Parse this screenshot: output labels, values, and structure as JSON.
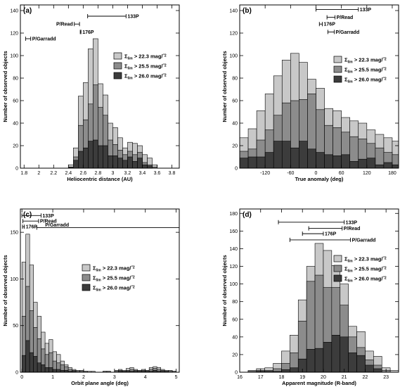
{
  "colors": {
    "light": "#c8c8c8",
    "mid": "#8c8c8c",
    "dark": "#3c3c3c"
  },
  "legend": [
    {
      "sym": "Σ",
      "sub": "lim",
      "text": " > 22.3 mag/",
      "unit": "″2"
    },
    {
      "sym": "Σ",
      "sub": "lim",
      "text": " > 25.5 mag/",
      "unit": "″2"
    },
    {
      "sym": "Σ",
      "sub": "lim",
      "text": " > 26.0 mag/",
      "unit": "″2"
    }
  ],
  "chart_data": [
    {
      "type": "bar",
      "label": "(a)",
      "xlabel": "Heliocentric distance (AU)",
      "ylabel": "Number of observed objects",
      "xlim": [
        1.75,
        3.9
      ],
      "ylim": [
        0,
        145
      ],
      "xticks": [
        1.8,
        2.0,
        2.2,
        2.4,
        2.6,
        2.8,
        3.0,
        3.2,
        3.4,
        3.6,
        3.8
      ],
      "xtick_labels": [
        "1.8",
        "2",
        "2.2",
        "2.4",
        "2.6",
        "2.8",
        "3",
        "3.2",
        "3.4",
        "3.6",
        "3.8"
      ],
      "yticks": [
        0,
        20,
        40,
        60,
        80,
        100,
        120,
        140
      ],
      "bin_start": 2.4,
      "bin_width": 0.0667,
      "series": [
        {
          "values": [
            3,
            18,
            64,
            76,
            106,
            115,
            75,
            65,
            40,
            36,
            27,
            18,
            23,
            22,
            20,
            12,
            9,
            3
          ]
        },
        {
          "values": [
            1,
            10,
            38,
            43,
            57,
            74,
            54,
            47,
            25,
            21,
            16,
            12,
            15,
            12,
            14,
            5,
            3,
            1
          ]
        },
        {
          "values": [
            1,
            7,
            15,
            18,
            24,
            25,
            20,
            20,
            11,
            11,
            9,
            7,
            10,
            6,
            9,
            3,
            2,
            0
          ]
        }
      ],
      "annotations": [
        {
          "text": "133P",
          "x0": 2.66,
          "x1": 3.18,
          "y": 135
        },
        {
          "text": "P/Read",
          "x0": 2.48,
          "x1": 2.55,
          "y": 128
        },
        {
          "text": "176P",
          "x0": 2.56,
          "x1": 2.57,
          "y": 121
        },
        {
          "text": "P/Garradd",
          "x0": 1.82,
          "x1": 1.89,
          "y": 115
        }
      ]
    },
    {
      "type": "bar",
      "label": "(b)",
      "xlabel": "True anomaly (deg)",
      "ylabel": "Number of observed objects",
      "xlim": [
        -180,
        195
      ],
      "ylim": [
        0,
        145
      ],
      "xticks": [
        -120,
        -60,
        0,
        60,
        120,
        180
      ],
      "xtick_labels": [
        "-120",
        "-60",
        "0",
        "60",
        "120",
        "180"
      ],
      "yticks": [
        0,
        20,
        40,
        60,
        80,
        100,
        120,
        140
      ],
      "bin_start": -180,
      "bin_width": 20,
      "series": [
        {
          "values": [
            27,
            35,
            51,
            66,
            82,
            96,
            102,
            94,
            79,
            71,
            53,
            51,
            45,
            42,
            40,
            34,
            30,
            27,
            24
          ]
        },
        {
          "values": [
            15,
            17,
            25,
            34,
            47,
            58,
            60,
            61,
            66,
            52,
            38,
            36,
            32,
            28,
            26,
            22,
            18,
            14,
            12
          ]
        },
        {
          "values": [
            9,
            10,
            10,
            14,
            24,
            24,
            18,
            24,
            17,
            14,
            12,
            11,
            12,
            6,
            8,
            9,
            3,
            5,
            3
          ]
        }
      ],
      "annotations": [
        {
          "text": "133P",
          "x0": 0,
          "x1": 100,
          "y": 141
        },
        {
          "text": "P/Read",
          "x0": 26,
          "x1": 45,
          "y": 134
        },
        {
          "text": "176P",
          "x0": 8,
          "x1": 15,
          "y": 128
        },
        {
          "text": "P/Garradd",
          "x0": 28,
          "x1": 43,
          "y": 121
        }
      ]
    },
    {
      "type": "bar",
      "label": "(c)",
      "xlabel": "Orbit plane angle (deg)",
      "ylabel": "Number of observed objects",
      "xlim": [
        -0.05,
        5.1
      ],
      "ylim": [
        0,
        175
      ],
      "xticks": [
        0,
        1,
        2,
        3,
        4,
        5
      ],
      "xtick_labels": [
        "0",
        "1",
        "2",
        "3",
        "4",
        "5"
      ],
      "yticks": [
        0,
        50,
        100,
        150
      ],
      "bin_start": 0,
      "bin_width": 0.125,
      "series": [
        {
          "values": [
            118,
            148,
            115,
            75,
            60,
            43,
            31,
            35,
            22,
            19,
            12,
            8,
            5,
            3,
            2,
            2,
            1,
            1,
            1,
            0,
            0,
            1,
            1,
            0,
            2,
            3,
            2,
            4,
            5,
            3,
            2,
            3,
            2,
            5,
            6,
            5,
            3,
            2,
            2,
            1
          ]
        },
        {
          "values": [
            60,
            92,
            66,
            48,
            36,
            25,
            19,
            21,
            12,
            10,
            8,
            6,
            3,
            2,
            1,
            1,
            1,
            0,
            0,
            0,
            0,
            1,
            1,
            0,
            1,
            2,
            1,
            2,
            3,
            2,
            2,
            2,
            2,
            3,
            4,
            3,
            2,
            1,
            1,
            1
          ]
        },
        {
          "values": [
            18,
            34,
            21,
            17,
            10,
            8,
            5,
            5,
            3,
            3,
            2,
            2,
            1,
            1,
            0,
            0,
            0,
            0,
            0,
            0,
            0,
            0,
            0,
            0,
            0,
            1,
            1,
            1,
            1,
            1,
            1,
            1,
            1,
            1,
            2,
            1,
            1,
            1,
            0,
            0
          ]
        }
      ],
      "annotations": [
        {
          "text": "133P",
          "x0": 0.0,
          "x1": 0.62,
          "y": 168
        },
        {
          "text": "P/Read",
          "x0": 0.03,
          "x1": 0.54,
          "y": 162
        },
        {
          "text": "176P",
          "x0": 0.02,
          "x1": 0.08,
          "y": 156
        },
        {
          "text": "P/Garradd",
          "x0": 0.48,
          "x1": 5.1,
          "y": 155
        }
      ]
    },
    {
      "type": "bar",
      "label": "(d)",
      "xlabel": "Apparent magnitude (R-band)",
      "ylabel": "Number of observed objects",
      "xlim": [
        16,
        23.6
      ],
      "ylim": [
        0,
        185
      ],
      "xticks": [
        16,
        17,
        18,
        19,
        20,
        21,
        22,
        23
      ],
      "xtick_labels": [
        "16",
        "17",
        "18",
        "19",
        "20",
        "21",
        "22",
        "23"
      ],
      "yticks": [
        0,
        20,
        40,
        60,
        80,
        100,
        120,
        140,
        160,
        180
      ],
      "bin_start": 16.4,
      "bin_width": 0.4,
      "series": [
        {
          "values": [
            2,
            4,
            5,
            10,
            24,
            42,
            82,
            120,
            146,
            138,
            121,
            100,
            52,
            46,
            24,
            18,
            5,
            2
          ]
        },
        {
          "values": [
            1,
            2,
            2,
            4,
            10,
            22,
            58,
            103,
            110,
            96,
            96,
            76,
            40,
            28,
            14,
            8,
            2,
            0
          ]
        },
        {
          "values": [
            0,
            1,
            1,
            1,
            3,
            5,
            15,
            26,
            27,
            34,
            42,
            40,
            22,
            19,
            8,
            4,
            0,
            0
          ]
        }
      ],
      "annotations": [
        {
          "text": "133P",
          "x0": 17.85,
          "x1": 21.0,
          "y": 170
        },
        {
          "text": "P/Read",
          "x0": 19.3,
          "x1": 20.9,
          "y": 163
        },
        {
          "text": "176P",
          "x0": 19.0,
          "x1": 20.0,
          "y": 157
        },
        {
          "text": "P/Garradd",
          "x0": 18.4,
          "x1": 21.3,
          "y": 150
        }
      ]
    }
  ]
}
